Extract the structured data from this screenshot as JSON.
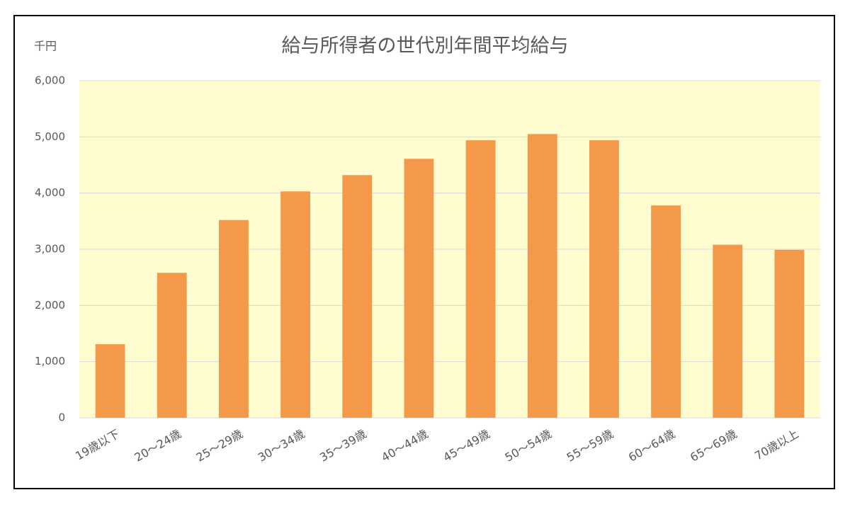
{
  "chart_data": {
    "type": "bar",
    "title": "給与所得者の世代別年間平均給与",
    "y_label": "千円",
    "categories": [
      "19歳以下",
      "20～24歳",
      "25～29歳",
      "30～34歳",
      "35～39歳",
      "40～44歳",
      "45～49歳",
      "50～54歳",
      "55～59歳",
      "60～64歳",
      "65～69歳",
      "70歳以上"
    ],
    "values": [
      1310,
      2580,
      3520,
      4030,
      4320,
      4610,
      4940,
      5050,
      4940,
      3780,
      3080,
      2990
    ],
    "color": "#f4984a",
    "plot_background": "#fffdd0",
    "ylim": [
      0,
      6000
    ],
    "yticks": [
      0,
      {
        "value": 1000,
        "label": "1,000"
      },
      {
        "value": 2000,
        "label": "2,000"
      },
      {
        "value": 3000,
        "label": "3,000"
      },
      {
        "value": 4000,
        "label": "4,000"
      },
      {
        "value": 5000,
        "label": "5,000"
      },
      {
        "value": 6000,
        "label": "6,000"
      }
    ],
    "grid": true
  }
}
